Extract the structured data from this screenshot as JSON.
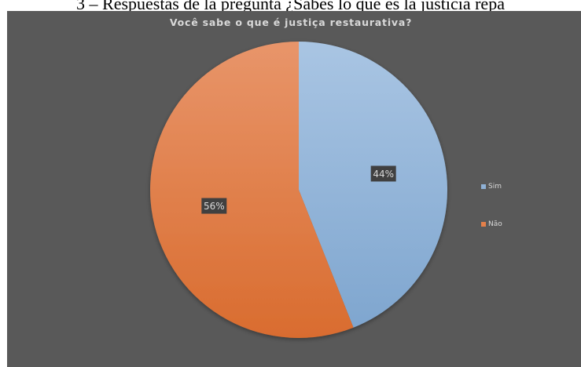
{
  "caption": "3 – Respuestas de la pregunta ¿Sabes lo que es la justicia repa",
  "chart_data": {
    "type": "pie",
    "title": "Você sabe o que é justiça restaurativa?",
    "slices": [
      {
        "label": "Sim",
        "value": 44,
        "display": "44%",
        "color": "#8fb1d6"
      },
      {
        "label": "Não",
        "value": 56,
        "display": "56%",
        "color": "#e4804a"
      }
    ],
    "legend_position": "right"
  }
}
